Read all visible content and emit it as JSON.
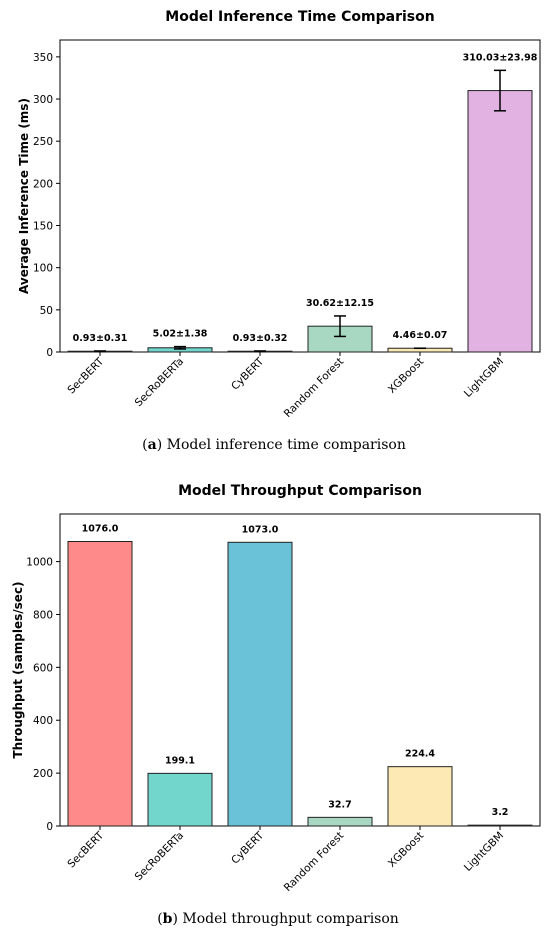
{
  "chart_data": [
    {
      "type": "bar",
      "title": "Model Inference Time Comparison",
      "xlabel": "",
      "ylabel": "Average Inference Time (ms)",
      "categories": [
        "SecBERT",
        "SecRoBERTa",
        "CyBERT",
        "Random Forest",
        "XGBoost",
        "LightGBM"
      ],
      "values": [
        0.93,
        5.02,
        0.93,
        30.62,
        4.46,
        310.03
      ],
      "errors": [
        0.31,
        1.38,
        0.32,
        12.15,
        0.07,
        23.98
      ],
      "data_labels": [
        "0.93±0.31",
        "5.02±1.38",
        "0.93±0.32",
        "30.62±12.15",
        "4.46±0.07",
        "310.03±23.98"
      ],
      "colors": [
        "#ff8a8a",
        "#72d6cd",
        "#6ac2d9",
        "#a8d8c2",
        "#fbe9b3",
        "#e2b2e2"
      ],
      "ylim": [
        0,
        370
      ],
      "yticks": [
        0,
        50,
        100,
        150,
        200,
        250,
        300,
        350
      ],
      "grid": false,
      "caption_label": "a",
      "caption_text": "Model inference time comparison"
    },
    {
      "type": "bar",
      "title": "Model Throughput Comparison",
      "xlabel": "",
      "ylabel": "Throughput (samples/sec)",
      "categories": [
        "SecBERT",
        "SecRoBERTa",
        "CyBERT",
        "Random Forest",
        "XGBoost",
        "LightGBM"
      ],
      "values": [
        1076.0,
        199.1,
        1073.0,
        32.7,
        224.4,
        3.2
      ],
      "data_labels": [
        "1076.0",
        "199.1",
        "1073.0",
        "32.7",
        "224.4",
        "3.2"
      ],
      "colors": [
        "#ff8a8a",
        "#72d6cd",
        "#6ac2d9",
        "#a8d8c2",
        "#fde9b4",
        "#c8a4e0"
      ],
      "ylim": [
        0,
        1180
      ],
      "yticks": [
        0,
        200,
        400,
        600,
        800,
        1000
      ],
      "grid": false,
      "caption_label": "b",
      "caption_text": "Model throughput comparison"
    }
  ]
}
